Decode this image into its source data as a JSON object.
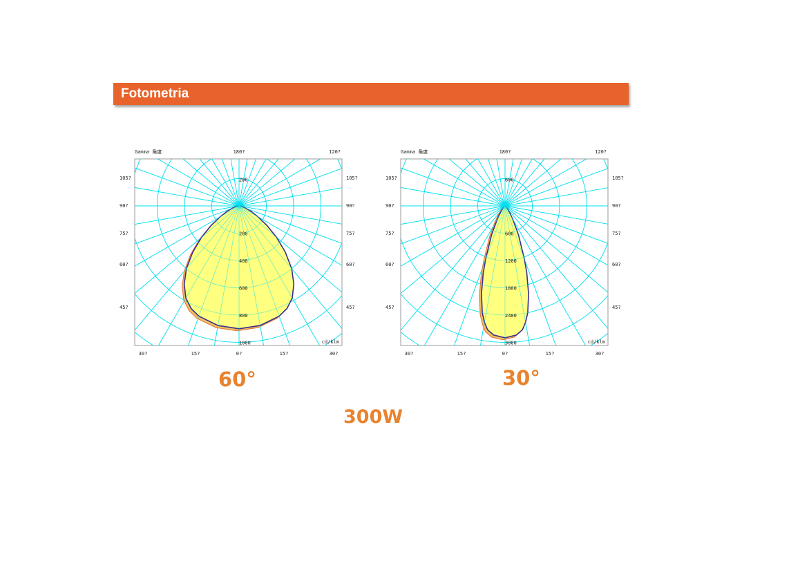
{
  "header": {
    "title": "Fotometria"
  },
  "labels": {
    "beam_left": "60°",
    "beam_right": "30°",
    "power": "300W"
  },
  "colors": {
    "banner": "#e8632b",
    "label": "#e8832f",
    "grid": "#00e0ee",
    "fill": "#ffff80",
    "outline": "#3a2d90"
  },
  "chart_data": [
    {
      "type": "polar",
      "beam": "60°",
      "corner_label": "Gamma 角度",
      "unit": "cd/klm",
      "top_angle_labels": [
        "180?",
        "120?"
      ],
      "left_angle_labels": [
        "105?",
        "90?",
        "75?",
        "60?",
        "45?"
      ],
      "right_angle_labels": [
        "105?",
        "90º",
        "75?",
        "60?",
        "45?"
      ],
      "bottom_angle_labels": [
        "30?",
        "15?",
        "0?",
        "15?",
        "30?"
      ],
      "radial_labels": [
        "200",
        "200",
        "400",
        "600",
        "800",
        "1000"
      ],
      "r_step": 200,
      "r_max": 1000,
      "curve": {
        "angles": [
          0,
          10,
          20,
          25,
          30,
          35,
          40,
          45,
          50,
          55,
          60,
          65,
          70,
          75,
          80,
          85,
          90
        ],
        "values": [
          900,
          890,
          860,
          830,
          780,
          700,
          600,
          480,
          360,
          250,
          160,
          100,
          60,
          30,
          15,
          5,
          0
        ]
      }
    },
    {
      "type": "polar",
      "beam": "30°",
      "corner_label": "Gamma 角度",
      "unit": "cd/klm",
      "top_angle_labels": [
        "180?",
        "120?"
      ],
      "left_angle_labels": [
        "105?",
        "90?",
        "75?",
        "60?",
        "45?"
      ],
      "right_angle_labels": [
        "105?",
        "90?",
        "75?",
        "60?",
        "45?"
      ],
      "bottom_angle_labels": [
        "30?",
        "15?",
        "0?",
        "15?",
        "30?"
      ],
      "radial_labels": [
        "600",
        "600",
        "1200",
        "1800",
        "2400",
        "3000"
      ],
      "r_step": 600,
      "r_max": 3000,
      "curve": {
        "angles": [
          0,
          5,
          8,
          10,
          12,
          15,
          18,
          20,
          25,
          30,
          35,
          40,
          50,
          60,
          90
        ],
        "values": [
          2900,
          2850,
          2750,
          2600,
          2400,
          2000,
          1550,
          1250,
          700,
          350,
          180,
          100,
          40,
          10,
          0
        ]
      }
    }
  ]
}
